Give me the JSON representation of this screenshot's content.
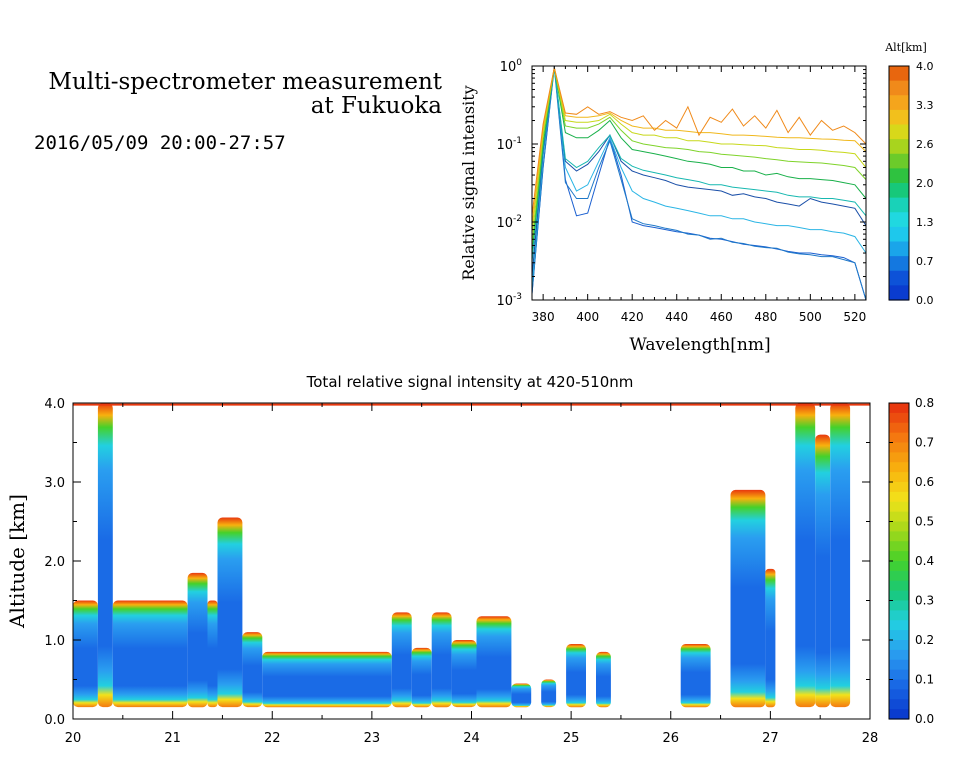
{
  "title": {
    "line1": "Multi-spectrometer measurement",
    "line2": "at Fukuoka",
    "datetime": "2016/05/09 20:00-27:57"
  },
  "chart_data": [
    {
      "type": "line",
      "ylabel": "Relative signal intensity",
      "xlabel": "Wavelength[nm]",
      "y_scale": "log",
      "xlim": [
        375,
        525
      ],
      "ylim": [
        0.001,
        1
      ],
      "x_ticks": [
        "380",
        "400",
        "420",
        "440",
        "460",
        "480",
        "500",
        "520"
      ],
      "y_ticks": [
        {
          "base": "10",
          "exp": "-3"
        },
        {
          "base": "10",
          "exp": "-2"
        },
        {
          "base": "10",
          "exp": "-1"
        },
        {
          "base": "10",
          "exp": "0"
        }
      ],
      "colorbar": {
        "title": "Alt[km]",
        "ticks": [
          "4.0",
          "3.3",
          "2.6",
          "2.0",
          "1.3",
          "0.7",
          "0.0"
        ]
      },
      "x": [
        375,
        380,
        385,
        390,
        395,
        400,
        405,
        410,
        415,
        420,
        425,
        430,
        435,
        440,
        445,
        450,
        455,
        460,
        465,
        470,
        475,
        480,
        485,
        490,
        495,
        500,
        505,
        510,
        515,
        520,
        525
      ],
      "series": [
        {
          "color": "#1a5fd0",
          "values": [
            0.0012,
            0.05,
            1.0,
            0.035,
            0.012,
            0.013,
            0.04,
            0.12,
            0.04,
            0.01,
            0.009,
            0.0085,
            0.008,
            0.0075,
            0.0072,
            0.0068,
            0.0062,
            0.006,
            0.0056,
            0.0052,
            0.005,
            0.0048,
            0.0045,
            0.0042,
            0.004,
            0.004,
            0.0038,
            0.0037,
            0.0035,
            0.003,
            0.001
          ]
        },
        {
          "color": "#1e78c8",
          "values": [
            0.0012,
            0.05,
            0.95,
            0.032,
            0.02,
            0.02,
            0.05,
            0.11,
            0.035,
            0.011,
            0.0095,
            0.009,
            0.0083,
            0.0078,
            0.007,
            0.0068,
            0.006,
            0.0062,
            0.0055,
            0.0053,
            0.0049,
            0.0047,
            0.0046,
            0.0041,
            0.0039,
            0.0038,
            0.0036,
            0.0036,
            0.0033,
            0.003,
            0.001
          ]
        },
        {
          "color": "#2bb5e5",
          "values": [
            0.0015,
            0.07,
            0.95,
            0.05,
            0.025,
            0.03,
            0.06,
            0.12,
            0.05,
            0.025,
            0.02,
            0.018,
            0.016,
            0.015,
            0.014,
            0.013,
            0.012,
            0.012,
            0.011,
            0.011,
            0.01,
            0.0095,
            0.009,
            0.009,
            0.0085,
            0.008,
            0.008,
            0.0075,
            0.0072,
            0.0065,
            0.004
          ]
        },
        {
          "color": "#1a4fa8",
          "values": [
            0.002,
            0.08,
            0.95,
            0.06,
            0.045,
            0.055,
            0.08,
            0.13,
            0.06,
            0.045,
            0.04,
            0.037,
            0.034,
            0.03,
            0.028,
            0.027,
            0.026,
            0.025,
            0.022,
            0.023,
            0.021,
            0.02,
            0.018,
            0.017,
            0.016,
            0.02,
            0.018,
            0.017,
            0.016,
            0.015,
            0.009
          ]
        },
        {
          "color": "#17b8b0",
          "values": [
            0.003,
            0.09,
            0.95,
            0.065,
            0.05,
            0.06,
            0.09,
            0.13,
            0.065,
            0.052,
            0.046,
            0.043,
            0.04,
            0.037,
            0.035,
            0.033,
            0.03,
            0.03,
            0.028,
            0.027,
            0.026,
            0.025,
            0.024,
            0.022,
            0.021,
            0.021,
            0.02,
            0.02,
            0.019,
            0.018,
            0.012
          ]
        },
        {
          "color": "#19b04a",
          "values": [
            0.004,
            0.1,
            0.95,
            0.14,
            0.12,
            0.12,
            0.15,
            0.2,
            0.12,
            0.085,
            0.08,
            0.075,
            0.07,
            0.065,
            0.06,
            0.058,
            0.055,
            0.05,
            0.05,
            0.045,
            0.045,
            0.04,
            0.042,
            0.038,
            0.036,
            0.036,
            0.035,
            0.034,
            0.032,
            0.03,
            0.02
          ]
        },
        {
          "color": "#7fd32a",
          "values": [
            0.005,
            0.12,
            0.95,
            0.17,
            0.16,
            0.16,
            0.18,
            0.22,
            0.15,
            0.11,
            0.1,
            0.095,
            0.09,
            0.088,
            0.085,
            0.08,
            0.078,
            0.074,
            0.072,
            0.07,
            0.068,
            0.065,
            0.063,
            0.06,
            0.059,
            0.058,
            0.057,
            0.055,
            0.053,
            0.05,
            0.035
          ]
        },
        {
          "color": "#c7d81a",
          "values": [
            0.007,
            0.14,
            0.95,
            0.2,
            0.19,
            0.19,
            0.2,
            0.24,
            0.18,
            0.14,
            0.13,
            0.13,
            0.12,
            0.12,
            0.11,
            0.11,
            0.105,
            0.1,
            0.1,
            0.098,
            0.096,
            0.095,
            0.09,
            0.088,
            0.085,
            0.085,
            0.083,
            0.08,
            0.078,
            0.075,
            0.05
          ]
        },
        {
          "color": "#f0b81c",
          "values": [
            0.009,
            0.16,
            0.95,
            0.23,
            0.22,
            0.22,
            0.23,
            0.25,
            0.2,
            0.17,
            0.16,
            0.16,
            0.15,
            0.15,
            0.145,
            0.14,
            0.14,
            0.135,
            0.13,
            0.13,
            0.128,
            0.125,
            0.122,
            0.12,
            0.12,
            0.118,
            0.116,
            0.115,
            0.112,
            0.11,
            0.08
          ]
        },
        {
          "color": "#f08a1a",
          "values": [
            0.012,
            0.18,
            0.95,
            0.25,
            0.24,
            0.3,
            0.24,
            0.26,
            0.22,
            0.2,
            0.23,
            0.15,
            0.2,
            0.16,
            0.3,
            0.13,
            0.22,
            0.19,
            0.28,
            0.17,
            0.23,
            0.16,
            0.27,
            0.14,
            0.22,
            0.13,
            0.2,
            0.15,
            0.17,
            0.14,
            0.1
          ]
        }
      ]
    },
    {
      "type": "heatmap",
      "title": "Total relative signal intensity at 420-510nm",
      "ylabel": "Altitude [km]",
      "xlim": [
        20,
        28
      ],
      "ylim": [
        0,
        4
      ],
      "x_ticks": [
        "20",
        "21",
        "22",
        "23",
        "24",
        "25",
        "26",
        "27",
        "28"
      ],
      "y_ticks": [
        "0.0",
        "1.0",
        "2.0",
        "3.0",
        "4.0"
      ],
      "colorbar": {
        "ticks": [
          "0.0",
          "0.1",
          "0.2",
          "0.3",
          "0.4",
          "0.5",
          "0.6",
          "0.7",
          "0.8"
        ],
        "range": [
          0,
          0.8
        ]
      },
      "scale_colors": [
        "#0a3ccf",
        "#1a6be6",
        "#2a9ef0",
        "#22d0e0",
        "#18c878",
        "#45d12a",
        "#a5d81a",
        "#f3e21a",
        "#f8b10e",
        "#f47a10",
        "#e8380e"
      ],
      "cloud_regions": [
        {
          "t0": 20.0,
          "t1": 20.25,
          "top": 1.5
        },
        {
          "t0": 20.25,
          "t1": 20.4,
          "top": 4.0
        },
        {
          "t0": 20.4,
          "t1": 21.15,
          "top": 1.5
        },
        {
          "t0": 21.15,
          "t1": 21.35,
          "top": 1.85
        },
        {
          "t0": 21.35,
          "t1": 21.45,
          "top": 1.5
        },
        {
          "t0": 21.45,
          "t1": 21.7,
          "top": 2.55
        },
        {
          "t0": 21.7,
          "t1": 21.9,
          "top": 1.1
        },
        {
          "t0": 21.9,
          "t1": 23.2,
          "top": 0.85
        },
        {
          "t0": 23.2,
          "t1": 23.4,
          "top": 1.35
        },
        {
          "t0": 23.4,
          "t1": 23.6,
          "top": 0.9
        },
        {
          "t0": 23.6,
          "t1": 23.8,
          "top": 1.35
        },
        {
          "t0": 23.8,
          "t1": 24.05,
          "top": 1.0
        },
        {
          "t0": 24.05,
          "t1": 24.4,
          "top": 1.3
        },
        {
          "t0": 24.4,
          "t1": 24.6,
          "top": 0.45
        },
        {
          "t0": 24.7,
          "t1": 24.85,
          "top": 0.5
        },
        {
          "t0": 24.95,
          "t1": 25.15,
          "top": 0.95
        },
        {
          "t0": 25.25,
          "t1": 25.4,
          "top": 0.85
        },
        {
          "t0": 26.1,
          "t1": 26.4,
          "top": 0.95
        },
        {
          "t0": 26.6,
          "t1": 26.95,
          "top": 2.9
        },
        {
          "t0": 26.95,
          "t1": 27.05,
          "top": 1.9
        },
        {
          "t0": 27.25,
          "t1": 27.45,
          "top": 4.0
        },
        {
          "t0": 27.45,
          "t1": 27.6,
          "top": 3.6
        },
        {
          "t0": 27.6,
          "t1": 27.8,
          "top": 4.0
        }
      ]
    }
  ]
}
